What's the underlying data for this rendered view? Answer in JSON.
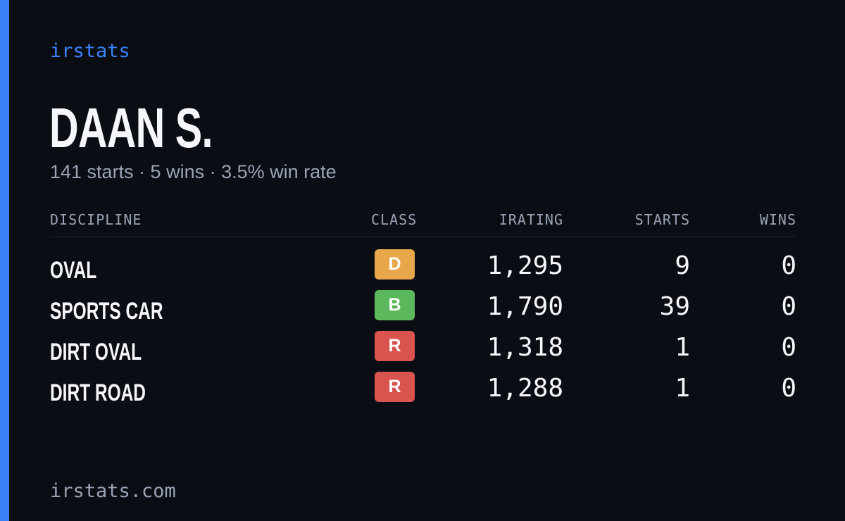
{
  "theme": {
    "accent": "#3b82f6",
    "background": "#0a0d14",
    "muted_text": "#9aa3b5"
  },
  "brand": "irstats",
  "driver": {
    "name": "DAAN S.",
    "summary": "141 starts · 5 wins · 3.5% win rate"
  },
  "table": {
    "headers": {
      "discipline": "DISCIPLINE",
      "class": "CLASS",
      "irating": "IRATING",
      "starts": "STARTS",
      "wins": "WINS"
    },
    "rows": [
      {
        "discipline": "OVAL",
        "class": "D",
        "class_color": "#e8a74a",
        "irating": "1,295",
        "starts": "9",
        "wins": "0"
      },
      {
        "discipline": "SPORTS CAR",
        "class": "B",
        "class_color": "#5cb85c",
        "irating": "1,790",
        "starts": "39",
        "wins": "0"
      },
      {
        "discipline": "DIRT OVAL",
        "class": "R",
        "class_color": "#d9534f",
        "irating": "1,318",
        "starts": "1",
        "wins": "0"
      },
      {
        "discipline": "DIRT ROAD",
        "class": "R",
        "class_color": "#d9534f",
        "irating": "1,288",
        "starts": "1",
        "wins": "0"
      }
    ]
  },
  "footer": {
    "url": "irstats.com"
  }
}
